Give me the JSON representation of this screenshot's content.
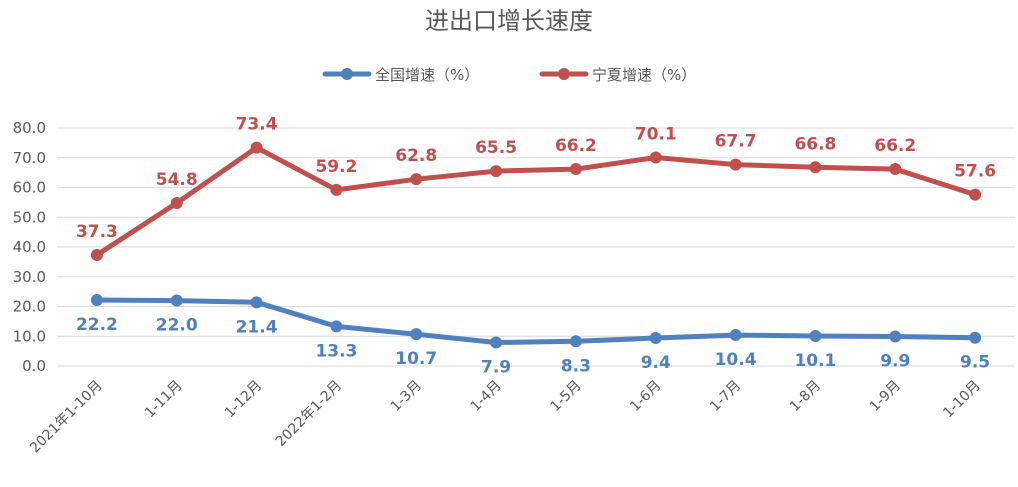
{
  "chart_data": {
    "type": "line",
    "title": "进出口增长速度",
    "xlabel": "",
    "ylabel": "",
    "categories": [
      "2021年1-10月",
      "1-11月",
      "1-12月",
      "2022年1-2月",
      "1-3月",
      "1-4月",
      "1-5月",
      "1-6月",
      "1-7月",
      "1-8月",
      "1-9月",
      "1-10月"
    ],
    "yticks": [
      "80.0",
      "70.0",
      "60.0",
      "50.0",
      "40.0",
      "30.0",
      "20.0",
      "10.0",
      "0.0"
    ],
    "ylim": [
      0,
      80
    ],
    "grid": true,
    "legend_position": "top",
    "series": [
      {
        "name": "全国增速（%）",
        "color": "#4f81bd",
        "label_color": "#4f81bd",
        "values": [
          22.2,
          22.0,
          21.4,
          13.3,
          10.7,
          7.9,
          8.3,
          9.4,
          10.4,
          10.1,
          9.9,
          9.5
        ],
        "labels": [
          "22.2",
          "22.0",
          "21.4",
          "13.3",
          "10.7",
          "7.9",
          "8.3",
          "9.4",
          "10.4",
          "10.1",
          "9.9",
          "9.5"
        ]
      },
      {
        "name": "宁夏增速（%）",
        "color": "#c0504d",
        "label_color": "#c0504d",
        "values": [
          37.3,
          54.8,
          73.4,
          59.2,
          62.8,
          65.5,
          66.2,
          70.1,
          67.7,
          66.8,
          66.2,
          57.6
        ],
        "labels": [
          "37.3",
          "54.8",
          "73.4",
          "59.2",
          "62.8",
          "65.5",
          "66.2",
          "70.1",
          "67.7",
          "66.8",
          "66.2",
          "57.6"
        ]
      }
    ]
  }
}
